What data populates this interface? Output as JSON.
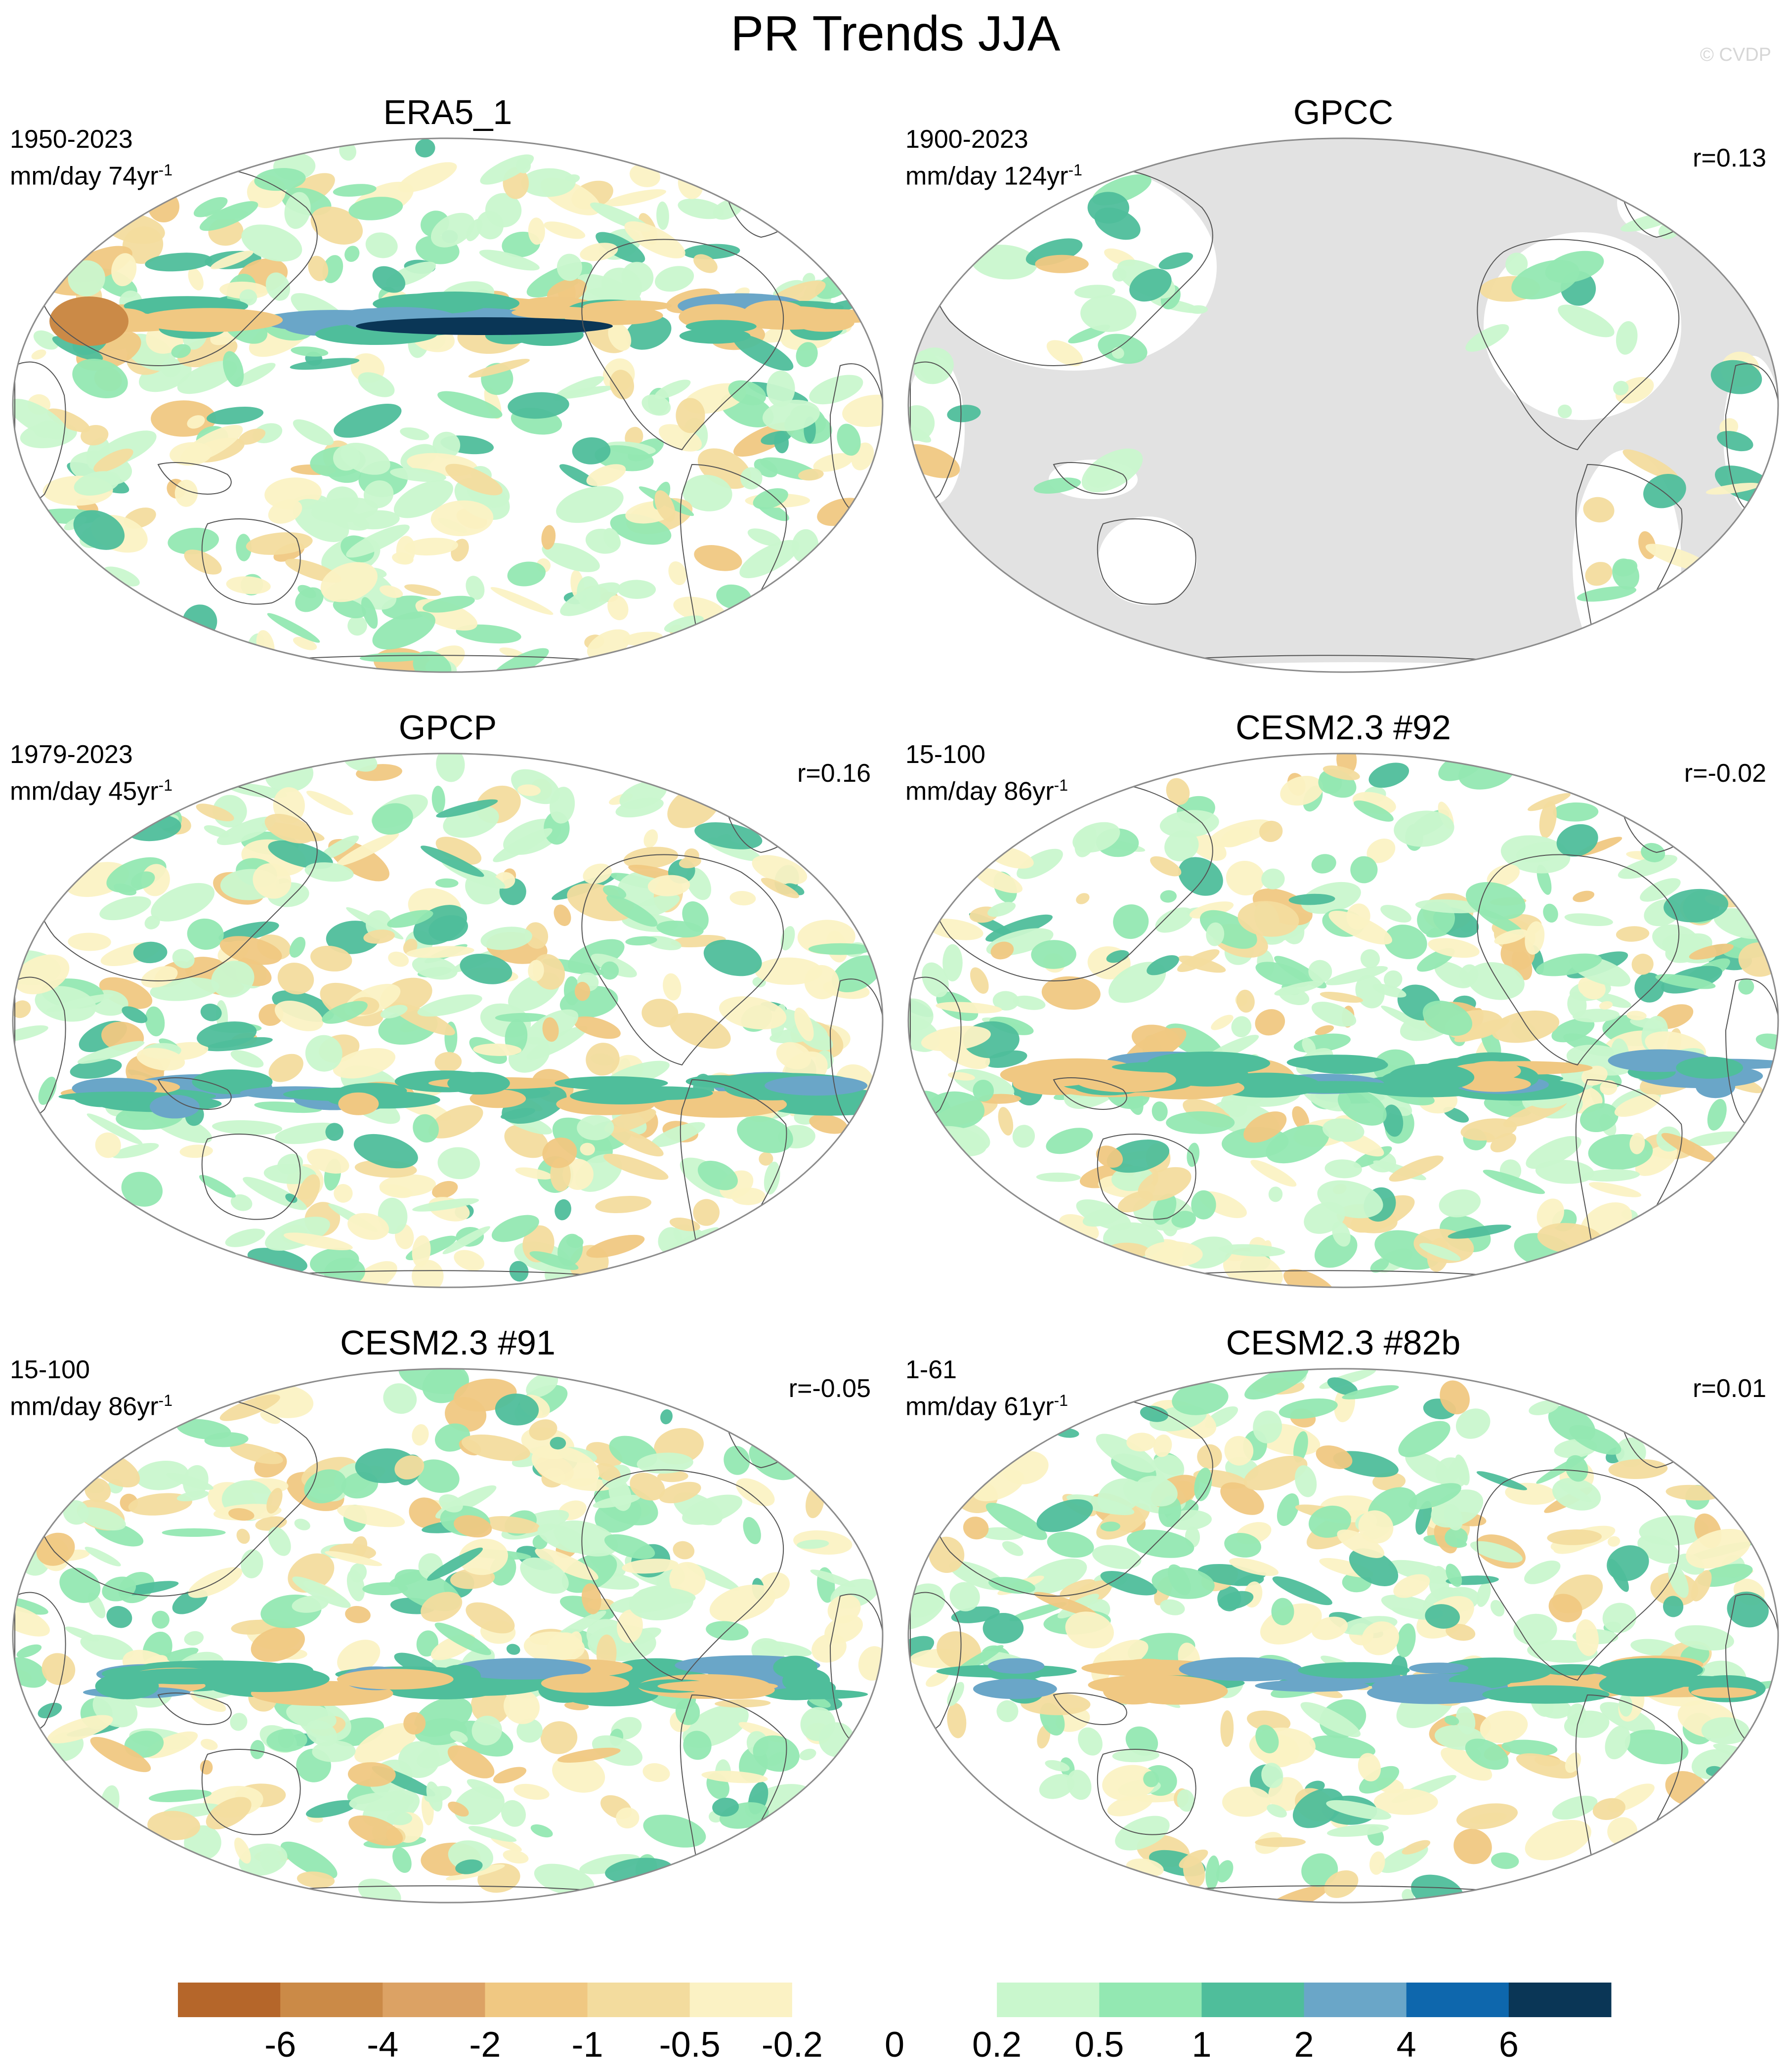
{
  "header": {
    "title": "PR Trends JJA",
    "credit": "© CVDP"
  },
  "panels": [
    {
      "title": "ERA5_1",
      "period": "1950-2023",
      "units_base": "mm/day 74yr",
      "units_exp": "-1",
      "corr": "",
      "land_only": false
    },
    {
      "title": "GPCC",
      "period": "1900-2023",
      "units_base": "mm/day 124yr",
      "units_exp": "-1",
      "corr": "r=0.13",
      "land_only": true
    },
    {
      "title": "GPCP",
      "period": "1979-2023",
      "units_base": "mm/day 45yr",
      "units_exp": "-1",
      "corr": "r=0.16",
      "land_only": false
    },
    {
      "title": "CESM2.3 #92",
      "period": "15-100",
      "units_base": "mm/day 86yr",
      "units_exp": "-1",
      "corr": "r=-0.02",
      "land_only": false
    },
    {
      "title": "CESM2.3 #91",
      "period": "15-100",
      "units_base": "mm/day 86yr",
      "units_exp": "-1",
      "corr": "r=-0.05",
      "land_only": false
    },
    {
      "title": "CESM2.3 #82b",
      "period": "1-61",
      "units_base": "mm/day 61yr",
      "units_exp": "-1",
      "corr": "r=0.01",
      "land_only": false
    }
  ],
  "colorbar": {
    "labels": [
      "-6",
      "-4",
      "-2",
      "-1",
      "-0.5",
      "-0.2",
      "0",
      "0.2",
      "0.5",
      "1",
      "2",
      "4",
      "6"
    ],
    "colors": [
      "#b5662a",
      "#cb8a47",
      "#dca264",
      "#f0c882",
      "#f3dc9e",
      "#fbf2c4",
      "#ffffff",
      "#ffffff",
      "#c9f7cd",
      "#93e8b2",
      "#4fbe9b",
      "#6aa6c8",
      "#0e67ad",
      "#0a3656"
    ],
    "missing_color": "#e2e2e2"
  }
}
